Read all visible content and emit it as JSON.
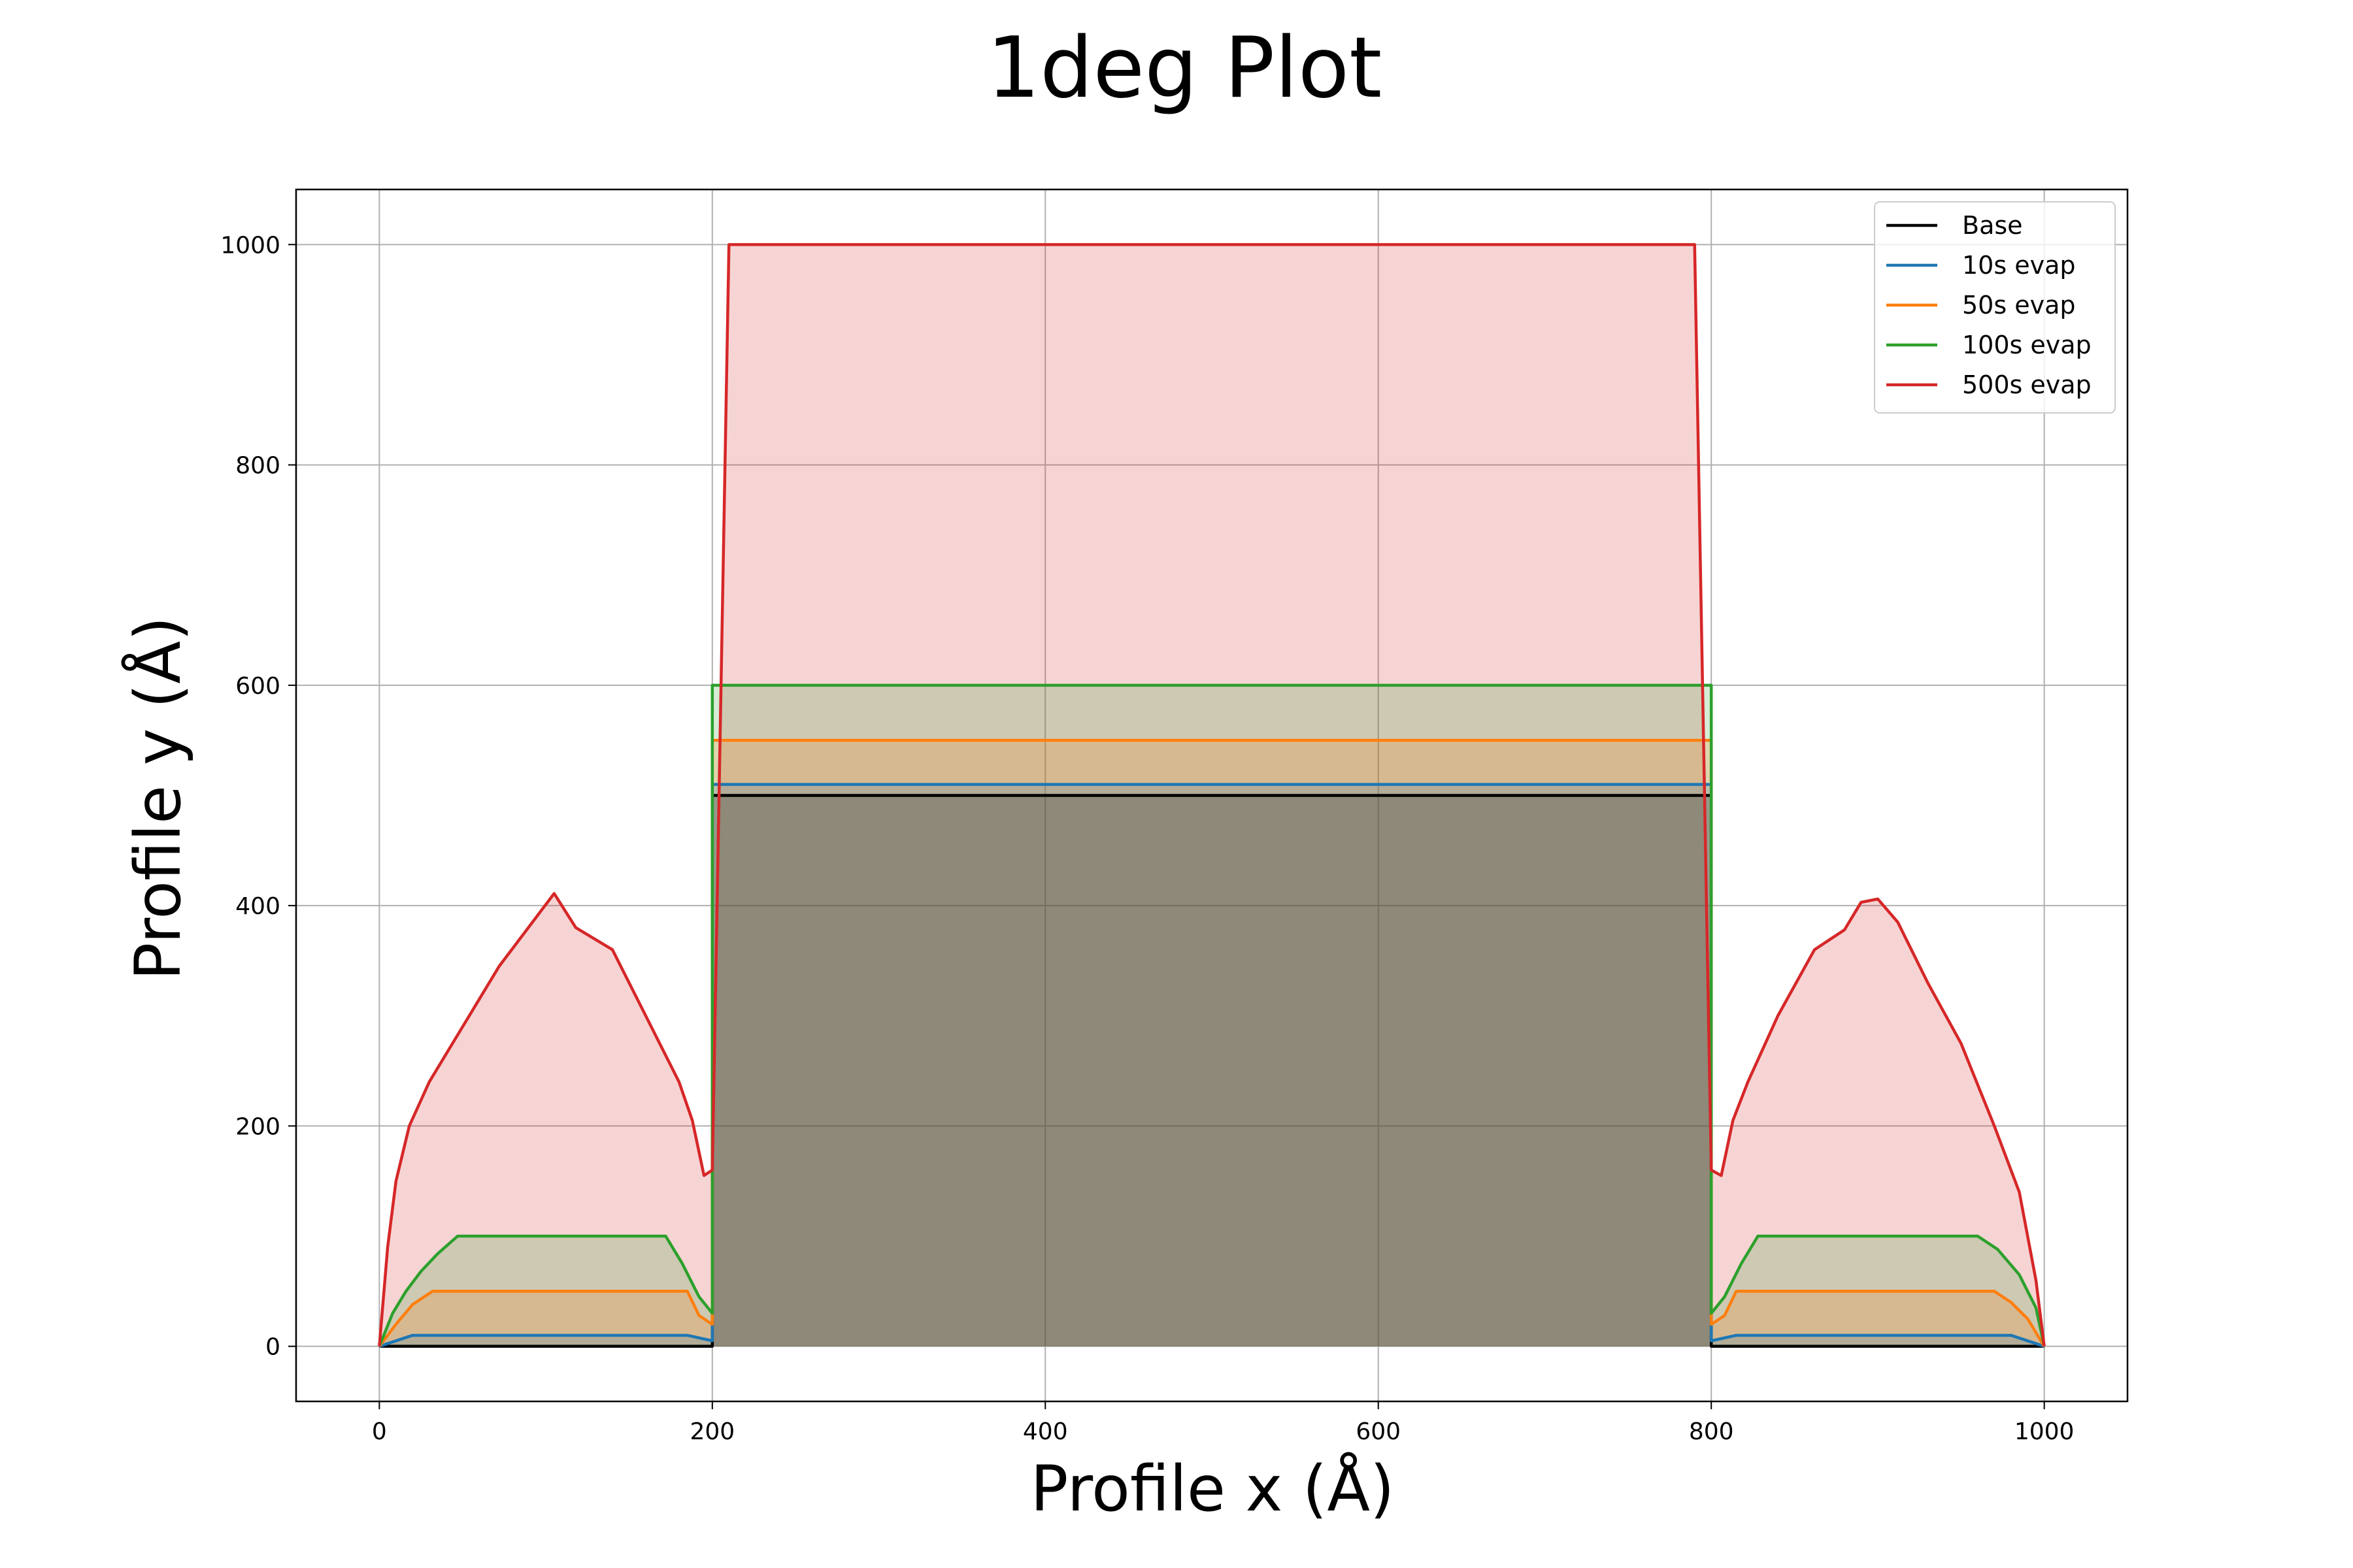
{
  "chart_data": {
    "type": "area",
    "title": "1deg Plot",
    "xlabel": "Profile x (Å)",
    "ylabel": "Profile y (Å)",
    "xlim": [
      -50,
      1050
    ],
    "ylim": [
      -50,
      1050
    ],
    "xticks": [
      0,
      200,
      400,
      600,
      800,
      1000
    ],
    "yticks": [
      0,
      200,
      400,
      600,
      800,
      1000
    ],
    "grid": true,
    "legend_position": "top-right",
    "series": [
      {
        "name": "Base",
        "color": "#000000",
        "fill": "#000000",
        "points": [
          [
            0,
            0
          ],
          [
            200,
            0
          ],
          [
            200,
            500
          ],
          [
            800,
            500
          ],
          [
            800,
            0
          ],
          [
            1000,
            0
          ]
        ]
      },
      {
        "name": "10s evap",
        "color": "#1f77b4",
        "fill": "#1f77b4",
        "points": [
          [
            0,
            0
          ],
          [
            20,
            10
          ],
          [
            185,
            10
          ],
          [
            200,
            5
          ],
          [
            200,
            510
          ],
          [
            800,
            510
          ],
          [
            800,
            5
          ],
          [
            815,
            10
          ],
          [
            980,
            10
          ],
          [
            1000,
            0
          ]
        ]
      },
      {
        "name": "50s evap",
        "color": "#ff7f0e",
        "fill": "#ff7f0e",
        "points": [
          [
            0,
            0
          ],
          [
            10,
            20
          ],
          [
            20,
            38
          ],
          [
            32,
            50
          ],
          [
            185,
            50
          ],
          [
            192,
            28
          ],
          [
            200,
            20
          ],
          [
            200,
            550
          ],
          [
            800,
            550
          ],
          [
            800,
            20
          ],
          [
            808,
            28
          ],
          [
            815,
            50
          ],
          [
            970,
            50
          ],
          [
            980,
            40
          ],
          [
            990,
            25
          ],
          [
            1000,
            0
          ]
        ]
      },
      {
        "name": "100s evap",
        "color": "#2ca02c",
        "fill": "#2ca02c",
        "points": [
          [
            0,
            0
          ],
          [
            8,
            30
          ],
          [
            16,
            50
          ],
          [
            25,
            68
          ],
          [
            35,
            84
          ],
          [
            47,
            100
          ],
          [
            172,
            100
          ],
          [
            182,
            75
          ],
          [
            192,
            45
          ],
          [
            200,
            30
          ],
          [
            200,
            600
          ],
          [
            800,
            600
          ],
          [
            800,
            30
          ],
          [
            808,
            45
          ],
          [
            818,
            75
          ],
          [
            828,
            100
          ],
          [
            960,
            100
          ],
          [
            972,
            88
          ],
          [
            985,
            65
          ],
          [
            995,
            35
          ],
          [
            1000,
            0
          ]
        ]
      },
      {
        "name": "500s evap",
        "color": "#d62728",
        "fill": "#d62728",
        "points": [
          [
            0,
            0
          ],
          [
            5,
            90
          ],
          [
            10,
            150
          ],
          [
            18,
            200
          ],
          [
            30,
            240
          ],
          [
            50,
            290
          ],
          [
            72,
            345
          ],
          [
            105,
            411
          ],
          [
            118,
            380
          ],
          [
            140,
            360
          ],
          [
            160,
            300
          ],
          [
            180,
            240
          ],
          [
            188,
            205
          ],
          [
            195,
            155
          ],
          [
            200,
            160
          ],
          [
            210,
            1000
          ],
          [
            790,
            1000
          ],
          [
            800,
            160
          ],
          [
            806,
            155
          ],
          [
            813,
            205
          ],
          [
            822,
            240
          ],
          [
            840,
            300
          ],
          [
            862,
            360
          ],
          [
            880,
            378
          ],
          [
            890,
            403
          ],
          [
            900,
            406
          ],
          [
            912,
            385
          ],
          [
            930,
            330
          ],
          [
            950,
            275
          ],
          [
            970,
            200
          ],
          [
            985,
            140
          ],
          [
            995,
            60
          ],
          [
            1000,
            0
          ]
        ]
      }
    ]
  }
}
